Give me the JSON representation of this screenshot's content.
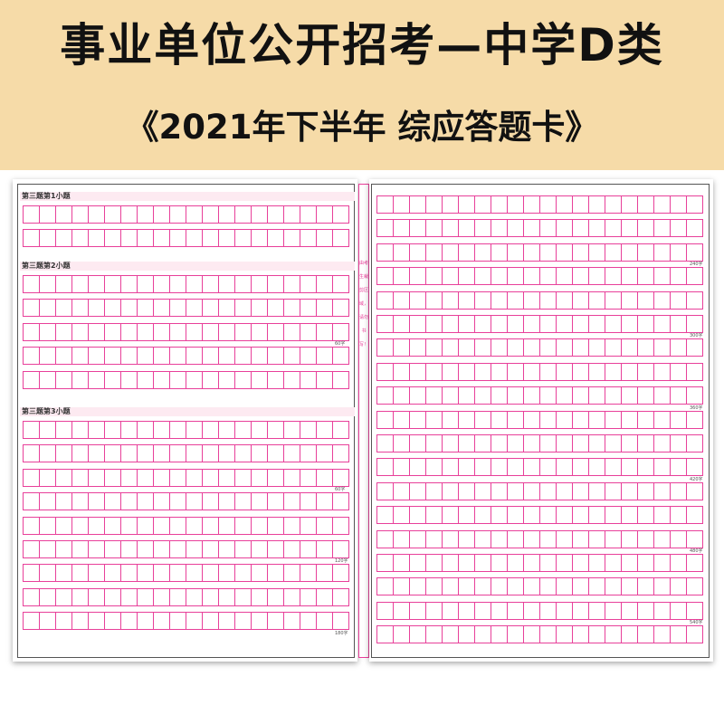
{
  "banner": {
    "title": "事业单位公开招考—中学D类",
    "subtitle": "《2021年下半年 综应答题卡》"
  },
  "colors": {
    "grid": "#e8409a",
    "banner": "#f6dba8"
  },
  "left_page": {
    "sections": [
      {
        "heading": "第三题第1小题",
        "rows": 2,
        "counts": []
      },
      {
        "heading": "第三题第2小题",
        "rows": 5,
        "counts": [
          {
            "after_row": 3,
            "label": "60字"
          }
        ]
      },
      {
        "heading": "第三题第3小题",
        "rows": 9,
        "counts": [
          {
            "after_row": 3,
            "label": "60字"
          },
          {
            "after_row": 6,
            "label": "120字"
          },
          {
            "after_row": 9,
            "label": "180字"
          }
        ]
      }
    ],
    "columns": 20
  },
  "strip": {
    "text": "由考生裁剪区域，请勿书写！"
  },
  "right_page": {
    "rows": 19,
    "columns": 20,
    "counts": [
      {
        "after_row": 3,
        "label": "240字"
      },
      {
        "after_row": 6,
        "label": "300字"
      },
      {
        "after_row": 9,
        "label": "360字"
      },
      {
        "after_row": 12,
        "label": "420字"
      },
      {
        "after_row": 15,
        "label": "480字"
      },
      {
        "after_row": 18,
        "label": "540字"
      }
    ]
  }
}
